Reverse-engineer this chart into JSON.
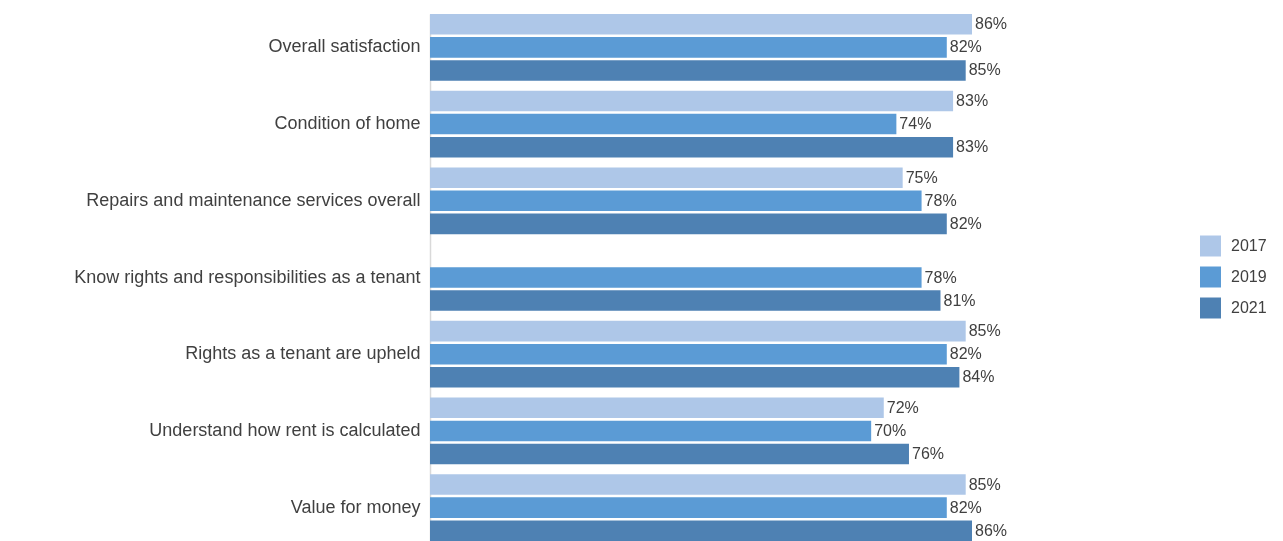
{
  "chart_data": {
    "type": "bar",
    "orientation": "horizontal",
    "categories": [
      "Overall satisfaction",
      "Condition of home",
      "Repairs and maintenance services overall",
      "Know rights and responsibilities as a tenant",
      "Rights as a tenant are upheld",
      "Understand how rent is calculated",
      "Value for money"
    ],
    "series": [
      {
        "name": "2017",
        "color": "#aec7e8",
        "values": [
          86,
          83,
          75,
          null,
          85,
          72,
          85
        ],
        "value_labels": [
          "86%",
          "83%",
          "75%",
          null,
          "85%",
          "72%",
          "85%"
        ]
      },
      {
        "name": "2019",
        "color": "#5b9bd5",
        "values": [
          82,
          74,
          78,
          78,
          82,
          70,
          82
        ],
        "value_labels": [
          "82%",
          "74%",
          "78%",
          "78%",
          "82%",
          "70%",
          "82%"
        ]
      },
      {
        "name": "2021",
        "color": "#4e81b3",
        "values": [
          85,
          83,
          82,
          81,
          84,
          76,
          86
        ],
        "value_labels": [
          "85%",
          "83%",
          "82%",
          "81%",
          "84%",
          "76%",
          "86%"
        ]
      }
    ],
    "tick_labels": "y",
    "legend": "right"
  }
}
